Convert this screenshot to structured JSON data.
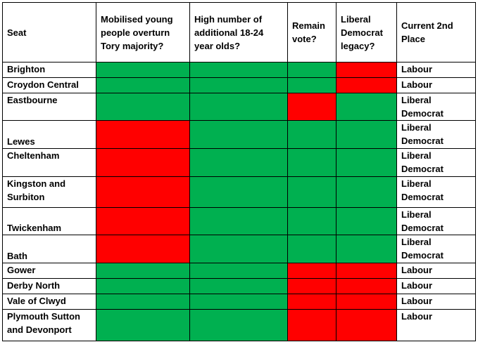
{
  "colors": {
    "yes": "#00b050",
    "no": "#ff0000"
  },
  "headers": [
    "Seat",
    "Mobilised young people overturn Tory majority?",
    "High number of additional 18-24 year olds?",
    "Remain vote?",
    "Liberal Democrat legacy?",
    "Current 2nd Place"
  ],
  "rows": [
    {
      "seat": "Brighton",
      "cells": [
        "green",
        "green",
        "green",
        "red"
      ],
      "second": "Labour"
    },
    {
      "seat": "Croydon Central",
      "cells": [
        "green",
        "green",
        "green",
        "red"
      ],
      "second": "Labour"
    },
    {
      "seat": "Eastbourne",
      "cells": [
        "green",
        "green",
        "red",
        "green"
      ],
      "second": "Liberal Democrat"
    },
    {
      "seat": "Lewes",
      "cells": [
        "red",
        "green",
        "green",
        "green"
      ],
      "second": "Liberal Democrat"
    },
    {
      "seat": "Cheltenham",
      "cells": [
        "red",
        "green",
        "green",
        "green"
      ],
      "second": "Liberal Democrat"
    },
    {
      "seat": "Kingston and Surbiton",
      "cells": [
        "red",
        "green",
        "green",
        "green"
      ],
      "second": "Liberal Democrat"
    },
    {
      "seat": "Twickenham",
      "cells": [
        "red",
        "green",
        "green",
        "green"
      ],
      "second": "Liberal Democrat"
    },
    {
      "seat": "Bath",
      "cells": [
        "red",
        "green",
        "green",
        "green"
      ],
      "second": "Liberal Democrat"
    },
    {
      "seat": "Gower",
      "cells": [
        "green",
        "green",
        "red",
        "red"
      ],
      "second": "Labour"
    },
    {
      "seat": "Derby North",
      "cells": [
        "green",
        "green",
        "red",
        "red"
      ],
      "second": "Labour"
    },
    {
      "seat": "Vale of Clwyd",
      "cells": [
        "green",
        "green",
        "red",
        "red"
      ],
      "second": "Labour"
    },
    {
      "seat": "Plymouth Sutton and Devonport",
      "cells": [
        "green",
        "green",
        "red",
        "red"
      ],
      "second": "Labour"
    }
  ]
}
